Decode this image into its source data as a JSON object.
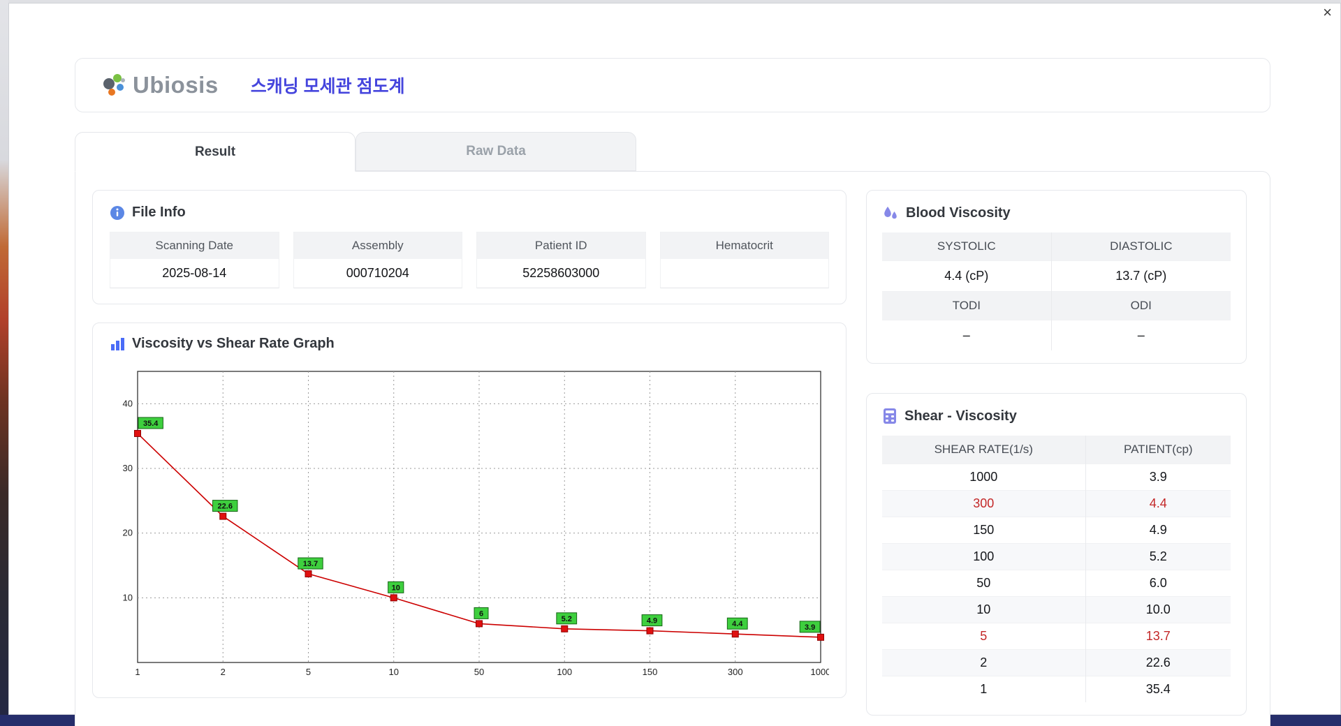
{
  "window": {
    "close_label": "×"
  },
  "header": {
    "brand": "Ubiosis",
    "title": "스캐닝 모세관 점도계"
  },
  "tabs": [
    {
      "label": "Result",
      "active": true
    },
    {
      "label": "Raw Data",
      "active": false
    }
  ],
  "file_info": {
    "title": "File Info",
    "fields": [
      {
        "label": "Scanning Date",
        "value": "2025-08-14"
      },
      {
        "label": "Assembly",
        "value": "000710204"
      },
      {
        "label": "Patient ID",
        "value": "52258603000"
      },
      {
        "label": "Hematocrit",
        "value": ""
      }
    ]
  },
  "graph": {
    "title": "Viscosity vs Shear Rate Graph"
  },
  "blood_viscosity": {
    "title": "Blood Viscosity",
    "sections": [
      {
        "headers": [
          "SYSTOLIC",
          "DIASTOLIC"
        ],
        "values": [
          "4.4 (cP)",
          "13.7 (cP)"
        ]
      },
      {
        "headers": [
          "TODI",
          "ODI"
        ],
        "values": [
          "–",
          "–"
        ]
      }
    ]
  },
  "shear_viscosity": {
    "title": "Shear - Viscosity",
    "columns": [
      "SHEAR RATE(1/s)",
      "PATIENT(cp)"
    ],
    "rows": [
      {
        "shear": "1000",
        "patient": "3.9",
        "highlight": false
      },
      {
        "shear": "300",
        "patient": "4.4",
        "highlight": true
      },
      {
        "shear": "150",
        "patient": "4.9",
        "highlight": false
      },
      {
        "shear": "100",
        "patient": "5.2",
        "highlight": false
      },
      {
        "shear": "50",
        "patient": "6.0",
        "highlight": false
      },
      {
        "shear": "10",
        "patient": "10.0",
        "highlight": false
      },
      {
        "shear": "5",
        "patient": "13.7",
        "highlight": true
      },
      {
        "shear": "2",
        "patient": "22.6",
        "highlight": false
      },
      {
        "shear": "1",
        "patient": "35.4",
        "highlight": false
      }
    ]
  },
  "chart_data": {
    "type": "line",
    "title": "Viscosity vs Shear Rate Graph",
    "xlabel": "",
    "ylabel": "",
    "x_axis_type": "category",
    "x_labels": [
      "1",
      "2",
      "5",
      "10",
      "50",
      "100",
      "150",
      "300",
      "1000"
    ],
    "values": [
      35.4,
      22.6,
      13.7,
      10,
      6,
      5.2,
      4.9,
      4.4,
      3.9
    ],
    "point_labels": [
      "35.4",
      "22.6",
      "13.7",
      "10",
      "6",
      "5.2",
      "4.9",
      "4.4",
      "3.9"
    ],
    "y_ticks": [
      10,
      20,
      30,
      40
    ],
    "ylim": [
      0,
      45
    ],
    "grid": true,
    "line_color": "#cc0000",
    "marker_color": "#e01010",
    "marker_edge": "#8f0000",
    "label_bg": "#3ecf3e",
    "label_edge": "#156415"
  },
  "colors": {
    "accent_blue": "#4545dd",
    "red_value": "#c32727",
    "header_gray": "#f2f3f5",
    "taskbar": "#262e6b"
  }
}
